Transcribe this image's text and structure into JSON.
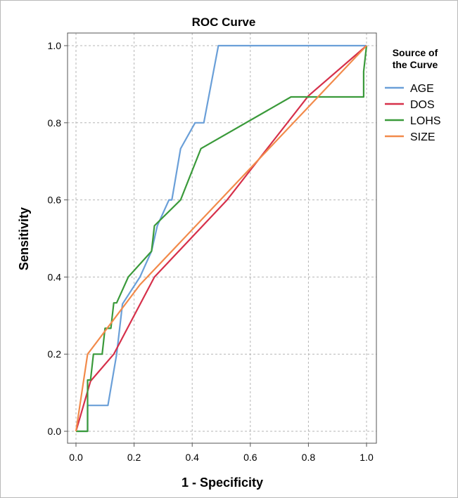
{
  "chart_data": {
    "type": "line",
    "title": "ROC Curve",
    "xlabel": "1 - Specificity",
    "ylabel": "Sensitivity",
    "xlim": [
      0,
      1
    ],
    "ylim": [
      0,
      1
    ],
    "xticks": [
      "0.0",
      "0.2",
      "0.4",
      "0.6",
      "0.8",
      "1.0"
    ],
    "yticks": [
      "0.0",
      "0.2",
      "0.4",
      "0.6",
      "0.8",
      "1.0"
    ],
    "grid": true,
    "legend": {
      "title_line1": "Source of",
      "title_line2": "the Curve",
      "position": "right"
    },
    "series": [
      {
        "name": "AGE",
        "color": "#6a9fd8",
        "points": [
          [
            0,
            0
          ],
          [
            0.04,
            0
          ],
          [
            0.04,
            0.067
          ],
          [
            0.11,
            0.067
          ],
          [
            0.14,
            0.2
          ],
          [
            0.16,
            0.33
          ],
          [
            0.22,
            0.4
          ],
          [
            0.26,
            0.467
          ],
          [
            0.28,
            0.533
          ],
          [
            0.32,
            0.6
          ],
          [
            0.33,
            0.6
          ],
          [
            0.36,
            0.733
          ],
          [
            0.41,
            0.8
          ],
          [
            0.44,
            0.8
          ],
          [
            0.49,
            1.0
          ],
          [
            1,
            1
          ]
        ]
      },
      {
        "name": "DOS",
        "color": "#d6304a",
        "points": [
          [
            0,
            0
          ],
          [
            0.05,
            0.13
          ],
          [
            0.13,
            0.2
          ],
          [
            0.27,
            0.4
          ],
          [
            0.52,
            0.6
          ],
          [
            0.8,
            0.87
          ],
          [
            1,
            1
          ]
        ]
      },
      {
        "name": "LOHS",
        "color": "#3a9a3a",
        "points": [
          [
            0,
            0
          ],
          [
            0.04,
            0
          ],
          [
            0.04,
            0.133
          ],
          [
            0.05,
            0.133
          ],
          [
            0.06,
            0.2
          ],
          [
            0.09,
            0.2
          ],
          [
            0.1,
            0.267
          ],
          [
            0.12,
            0.267
          ],
          [
            0.13,
            0.333
          ],
          [
            0.14,
            0.333
          ],
          [
            0.18,
            0.4
          ],
          [
            0.26,
            0.467
          ],
          [
            0.27,
            0.533
          ],
          [
            0.36,
            0.6
          ],
          [
            0.43,
            0.733
          ],
          [
            0.74,
            0.867
          ],
          [
            0.99,
            0.867
          ],
          [
            0.99,
            0.933
          ],
          [
            1,
            1
          ]
        ]
      },
      {
        "name": "SIZE",
        "color": "#f28a4a",
        "points": [
          [
            0,
            0
          ],
          [
            0.04,
            0.2
          ],
          [
            0.09,
            0.25
          ],
          [
            0.22,
            0.38
          ],
          [
            1,
            1
          ]
        ]
      }
    ]
  }
}
